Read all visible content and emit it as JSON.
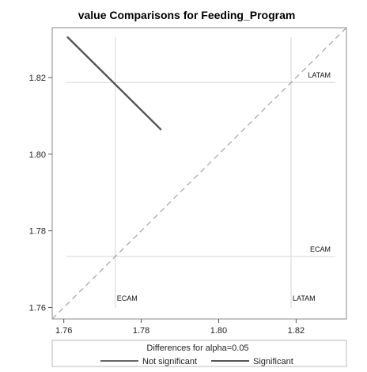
{
  "chart_data": {
    "type": "line",
    "title": "value Comparisons for Feeding_Program",
    "xlabel": "",
    "ylabel": "",
    "xlim": [
      1.757,
      1.833
    ],
    "ylim": [
      1.757,
      1.833
    ],
    "x_ticks": [
      1.76,
      1.78,
      1.8,
      1.82
    ],
    "y_ticks": [
      1.76,
      1.78,
      1.8,
      1.82
    ],
    "x_tick_labels": [
      "1.76",
      "1.78",
      "1.80",
      "1.82"
    ],
    "y_tick_labels": [
      "1.76",
      "1.78",
      "1.80",
      "1.82"
    ],
    "reference_lines": [
      {
        "name": "ECAM",
        "value": 1.7733
      },
      {
        "name": "LATAM",
        "value": 1.8187
      }
    ],
    "diagonal": {
      "from": [
        1.757,
        1.757
      ],
      "to": [
        1.833,
        1.833
      ],
      "style": "dashed"
    },
    "series": [
      {
        "name": "Significant",
        "color": "#555555",
        "status": "significant",
        "points": [
          [
            1.761,
            1.8305
          ],
          [
            1.785,
            1.8065
          ]
        ]
      }
    ],
    "legend": {
      "title": "Differences for alpha=0.05",
      "placement": "bottom",
      "entries": [
        {
          "label": "Not significant",
          "color": "#666666"
        },
        {
          "label": "Significant",
          "color": "#555555"
        }
      ]
    },
    "grid": false
  }
}
